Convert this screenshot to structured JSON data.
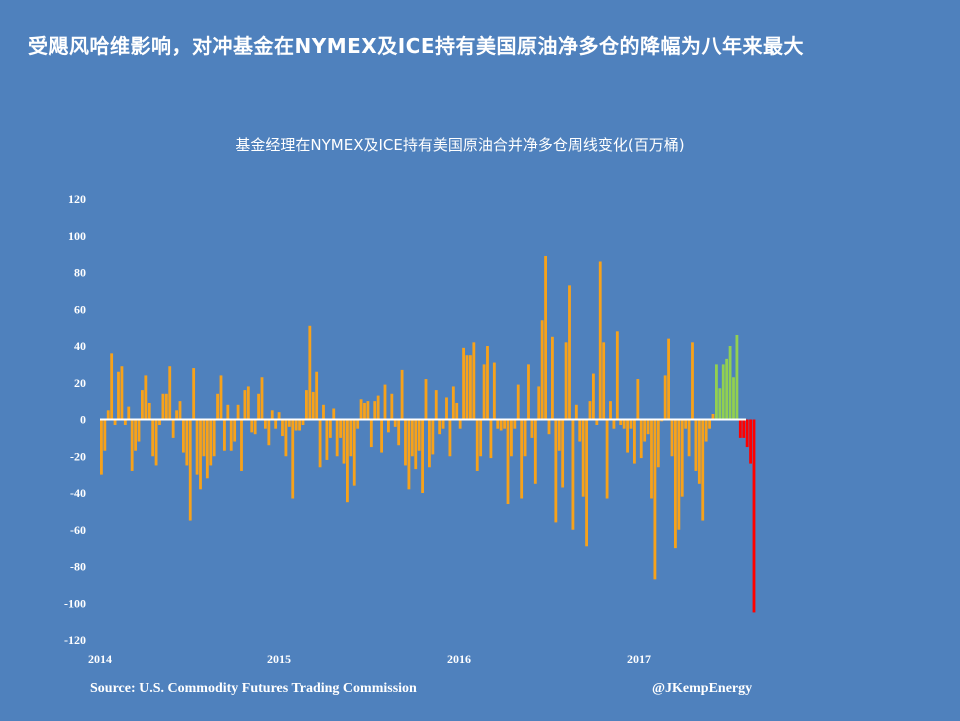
{
  "headline": "受飓风哈维影响，对冲基金在NYMEX及ICE持有美国原油净多仓的降幅为八年来最大",
  "source": "Source: U.S. Commodity Futures Trading Commission",
  "credit": "@JKempEnergy",
  "colors": {
    "background": "#4f81bd",
    "bar_default": "#f7a21b",
    "bar_recent_up": "#92d050",
    "bar_recent_down": "#ff0000",
    "zero_line": "#ffffff"
  },
  "chart_data": {
    "type": "bar",
    "title": "基金经理在NYMEX及ICE持有美国原油合并净多仓周线变化(百万桶)",
    "xlabel": "",
    "ylabel": "",
    "ylim": [
      -120,
      120
    ],
    "yticks": [
      120,
      100,
      80,
      60,
      40,
      20,
      0,
      -20,
      -40,
      -60,
      -80,
      -100,
      -120
    ],
    "xtick_labels": [
      "2014",
      "2015",
      "2016",
      "2017"
    ],
    "x_start": "2014-01",
    "x_end": "2017-09",
    "grid": false,
    "legend": "none",
    "series": [
      {
        "values": [
          -30,
          -17,
          5,
          36,
          -3,
          26,
          29,
          -3,
          7,
          -28,
          -17,
          -12,
          16,
          24,
          9,
          -20,
          -25,
          -3,
          14,
          14,
          29,
          -10,
          5,
          10,
          -18,
          -25,
          -55,
          28,
          -30,
          -38,
          -20,
          -32,
          -25,
          -20,
          14,
          24,
          -17,
          8,
          -17,
          -12,
          8,
          -28,
          16,
          18,
          -7,
          -8,
          14,
          23,
          -5,
          -14,
          5,
          -5,
          4,
          -9,
          -20,
          -4,
          -43,
          -6,
          -6,
          -3,
          16,
          51,
          15,
          26,
          -26,
          8,
          -22,
          -10,
          6,
          -20,
          -10,
          -24,
          -45,
          -20,
          -36,
          -5,
          11,
          9,
          10,
          -15,
          10,
          13,
          -18,
          19,
          -7,
          14,
          -4,
          -14,
          27,
          -25,
          -38,
          -20,
          -27,
          -17,
          -40,
          22,
          -26,
          -19,
          16,
          -8,
          -5,
          12,
          -20,
          18,
          9,
          -5,
          39,
          35,
          35,
          42,
          -28,
          -20,
          30,
          40,
          -21,
          31,
          -5,
          -6,
          -5,
          -46,
          -20,
          -5,
          19,
          -43,
          -20,
          30,
          -10,
          -35,
          18,
          54,
          89,
          -8,
          45,
          -56,
          -17,
          -37,
          42,
          73,
          -60,
          8,
          -12,
          -42,
          -69,
          10,
          25,
          -3,
          86,
          42,
          -43,
          10,
          -5,
          48,
          -3,
          -5,
          -18,
          -5,
          -24,
          22,
          -21,
          -12,
          -8,
          -43,
          -87,
          -26,
          -1,
          24,
          44,
          -20,
          -70,
          -60,
          -42,
          -5,
          -20,
          42,
          -28,
          -35,
          -55,
          -12,
          -5,
          3,
          30,
          17,
          30,
          33,
          40,
          23,
          46,
          -10,
          -10,
          -15,
          -24,
          -105
        ]
      }
    ],
    "recent_colored_weeks": 12
  }
}
